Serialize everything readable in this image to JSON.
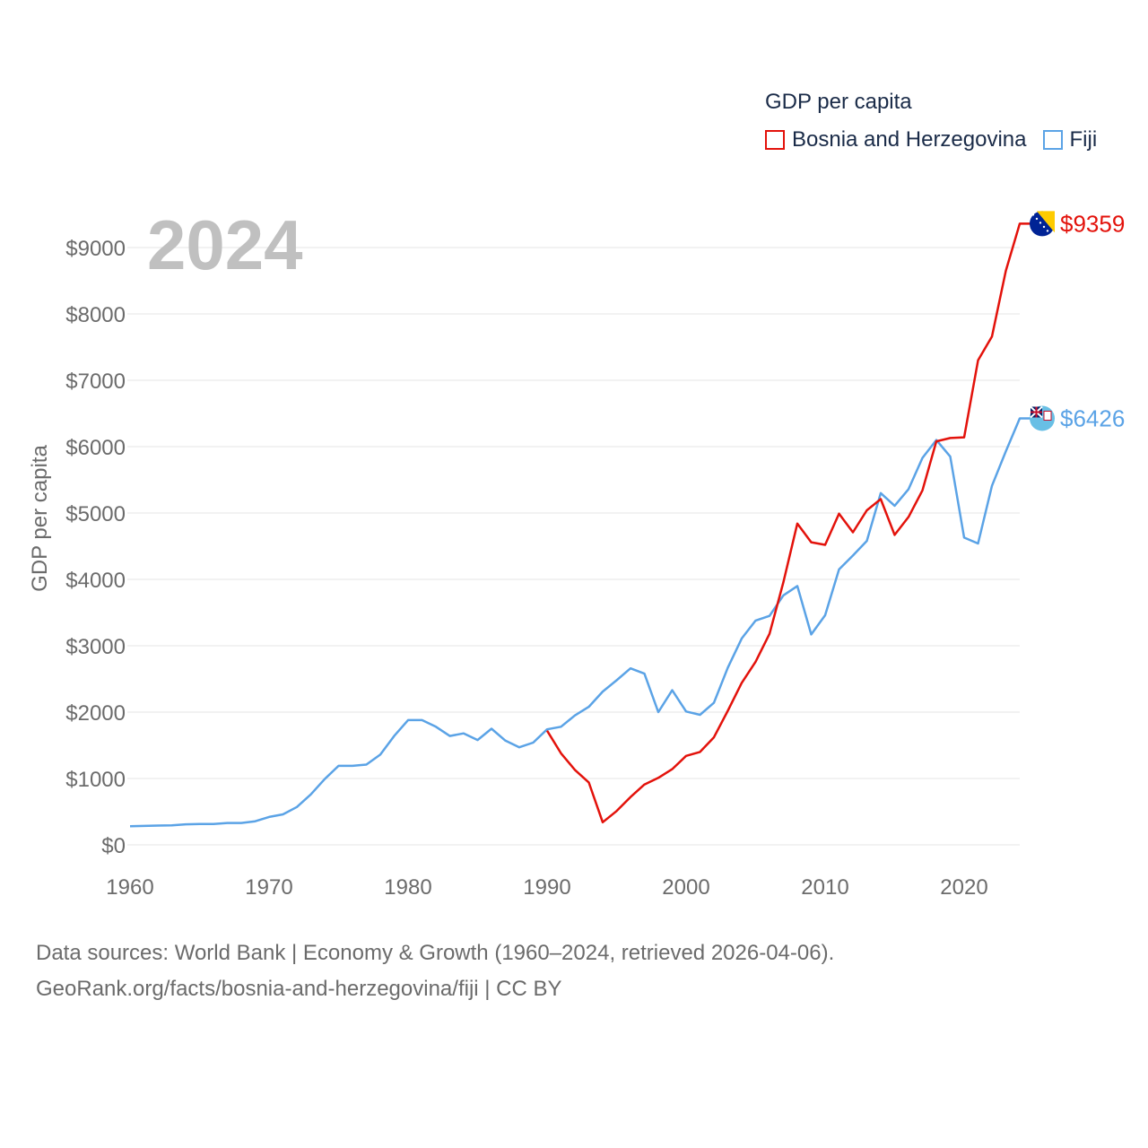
{
  "legend": {
    "title": "GDP per capita",
    "items": [
      {
        "label": "Bosnia and Herzegovina",
        "color": "#e3120b"
      },
      {
        "label": "Fiji",
        "color": "#5ba3e6"
      }
    ]
  },
  "footer": {
    "line1": "Data sources: World Bank | Economy & Growth (1960–2024, retrieved 2026-04-06).",
    "line2": "GeoRank.org/facts/bosnia-and-herzegovina/fiji | CC BY"
  },
  "chart_data": {
    "type": "line",
    "year_label": "2024",
    "ylabel": "GDP per capita",
    "xlim": [
      1960,
      2024
    ],
    "ylim": [
      0,
      9000
    ],
    "x_ticks": [
      1960,
      1970,
      1980,
      1990,
      2000,
      2010,
      2020
    ],
    "x_tick_labels": [
      "1960",
      "1970",
      "1980",
      "1990",
      "2000",
      "2010",
      "2020"
    ],
    "y_ticks": [
      0,
      1000,
      2000,
      3000,
      4000,
      5000,
      6000,
      7000,
      8000,
      9000
    ],
    "y_tick_labels": [
      "$0",
      "$1000",
      "$2000",
      "$3000",
      "$4000",
      "$5000",
      "$6000",
      "$7000",
      "$8000",
      "$9000"
    ],
    "grid": true,
    "series": [
      {
        "name": "Bosnia and Herzegovina",
        "color": "#e3120b",
        "end_label": "$9359",
        "end_value": 9359,
        "flag": "bosnia-flag-icon",
        "x": [
          1990,
          1991,
          1992,
          1993,
          1994,
          1995,
          1996,
          1997,
          1998,
          1999,
          2000,
          2001,
          2002,
          2003,
          2004,
          2005,
          2006,
          2007,
          2008,
          2009,
          2010,
          2011,
          2012,
          2013,
          2014,
          2015,
          2016,
          2017,
          2018,
          2019,
          2020,
          2021,
          2022,
          2023,
          2024,
          2025
        ],
        "values": [
          1720,
          1380,
          1130,
          940,
          340,
          510,
          720,
          910,
          1010,
          1140,
          1340,
          1400,
          1620,
          2020,
          2440,
          2760,
          3180,
          3960,
          4840,
          4560,
          4520,
          4990,
          4710,
          5040,
          5210,
          4670,
          4940,
          5340,
          6080,
          6130,
          6140,
          7300,
          7660,
          8650,
          9359,
          9359
        ]
      },
      {
        "name": "Fiji",
        "color": "#5ba3e6",
        "end_label": "$6426",
        "end_value": 6426,
        "flag": "fiji-flag-icon",
        "x": [
          1960,
          1961,
          1962,
          1963,
          1964,
          1965,
          1966,
          1967,
          1968,
          1969,
          1970,
          1971,
          1972,
          1973,
          1974,
          1975,
          1976,
          1977,
          1978,
          1979,
          1980,
          1981,
          1982,
          1983,
          1984,
          1985,
          1986,
          1987,
          1988,
          1989,
          1990,
          1991,
          1992,
          1993,
          1994,
          1995,
          1996,
          1997,
          1998,
          1999,
          2000,
          2001,
          2002,
          2003,
          2004,
          2005,
          2006,
          2007,
          2008,
          2009,
          2010,
          2011,
          2012,
          2013,
          2014,
          2015,
          2016,
          2017,
          2018,
          2019,
          2020,
          2021,
          2022,
          2023,
          2024,
          2025
        ],
        "values": [
          280,
          285,
          290,
          295,
          310,
          315,
          315,
          330,
          330,
          355,
          420,
          460,
          570,
          760,
          990,
          1190,
          1190,
          1210,
          1360,
          1640,
          1880,
          1880,
          1780,
          1640,
          1680,
          1580,
          1750,
          1570,
          1470,
          1540,
          1740,
          1780,
          1950,
          2080,
          2310,
          2480,
          2660,
          2580,
          2000,
          2330,
          2010,
          1960,
          2140,
          2670,
          3110,
          3380,
          3450,
          3760,
          3900,
          3170,
          3460,
          4150,
          4360,
          4580,
          5300,
          5110,
          5360,
          5830,
          6100,
          5850,
          4630,
          4540,
          5410,
          5930,
          6426,
          6426
        ]
      }
    ]
  }
}
